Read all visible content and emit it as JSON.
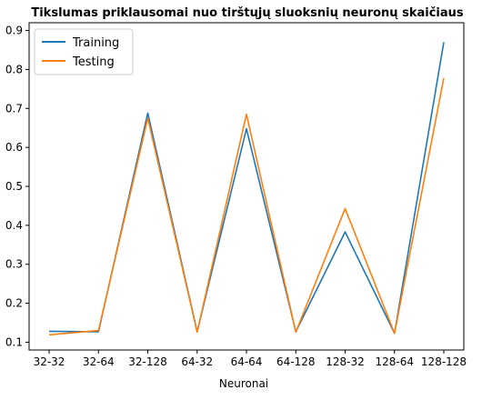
{
  "chart_data": {
    "type": "line",
    "title": "Tikslumas priklausomai nuo tirštųjų sluoksnių neuronų skaičiaus",
    "xlabel": "Neuronai",
    "ylabel": "",
    "categories": [
      "32-32",
      "32-64",
      "32-128",
      "64-32",
      "64-64",
      "64-128",
      "128-32",
      "128-64",
      "128-128"
    ],
    "y_ticks": [
      "0.1",
      "0.2",
      "0.3",
      "0.4",
      "0.5",
      "0.6",
      "0.7",
      "0.8",
      "0.9"
    ],
    "ylim": [
      0.08,
      0.92
    ],
    "grid": false,
    "legend_position": "top-left",
    "series": [
      {
        "name": "Training",
        "color": "#1f77b4",
        "values": [
          0.128,
          0.127,
          0.688,
          0.127,
          0.648,
          0.127,
          0.383,
          0.123,
          0.87
        ]
      },
      {
        "name": "Testing",
        "color": "#ff7f0e",
        "values": [
          0.119,
          0.13,
          0.675,
          0.126,
          0.685,
          0.126,
          0.443,
          0.123,
          0.778
        ]
      }
    ]
  }
}
